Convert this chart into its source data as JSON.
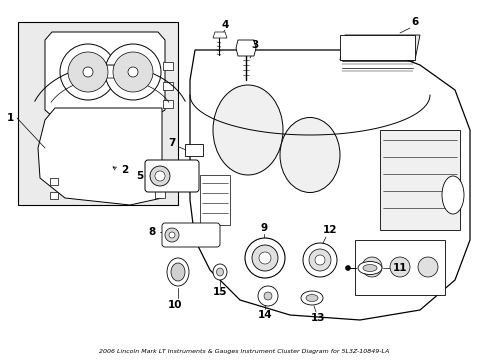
{
  "title": "2006 Lincoln Mark LT Instruments & Gauges Instrument Cluster Diagram for 5L3Z-10849-LA",
  "bg_color": "#ffffff",
  "figsize": [
    4.89,
    3.6
  ],
  "dpi": 100
}
